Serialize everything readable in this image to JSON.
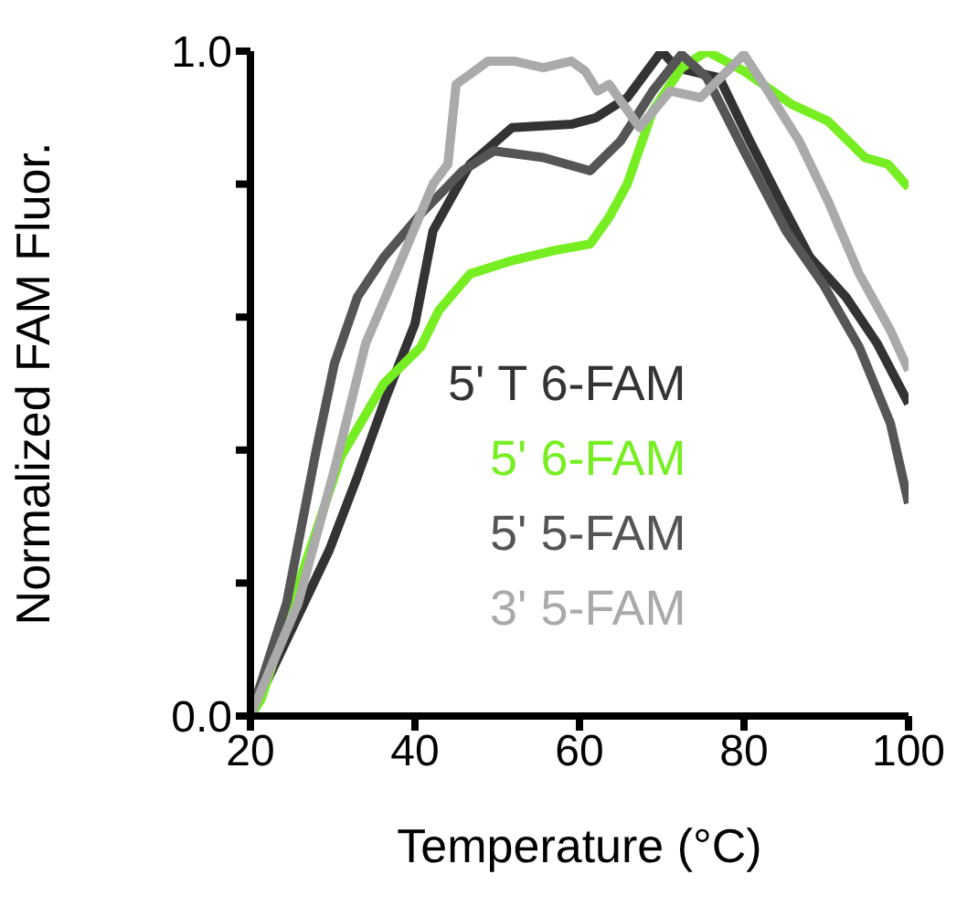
{
  "chart_data": {
    "type": "line",
    "xlabel": "Temperature (°C)",
    "ylabel": "Normalized FAM Fluor.",
    "xlim": [
      20,
      100
    ],
    "xticks": [
      20,
      40,
      60,
      80,
      100
    ],
    "ylim": [
      0,
      1
    ],
    "yticks": [
      {
        "value": 0,
        "label": "0.0"
      },
      {
        "value": 0.2,
        "label": null
      },
      {
        "value": 0.4,
        "label": null
      },
      {
        "value": 0.6,
        "label": null
      },
      {
        "value": 0.8,
        "label": null
      },
      {
        "value": 1,
        "label": "1.0"
      }
    ],
    "legend": "right",
    "marker": "none",
    "line_style": "solid",
    "series": [
      {
        "name": "5' T 6-FAM",
        "color": "#333333",
        "x": [
          20,
          25,
          29.6,
          33,
          36.5,
          40,
          42.2,
          46.7,
          51.8,
          59,
          62,
          65.8,
          70,
          71.8,
          77,
          80.7,
          84.4,
          88,
          92.4,
          96.2,
          100
        ],
        "values": [
          0,
          0.13,
          0.25,
          0.36,
          0.48,
          0.59,
          0.73,
          0.83,
          0.885,
          0.89,
          0.9,
          0.93,
          1.0,
          0.975,
          0.96,
          0.865,
          0.775,
          0.69,
          0.63,
          0.56,
          0.47
        ]
      },
      {
        "name": "5' 6-FAM",
        "color": "#77ee22",
        "x": [
          20,
          21.3,
          26.7,
          31,
          36.2,
          40.7,
          42.9,
          46.7,
          51.8,
          56.9,
          61.3,
          63.6,
          65.8,
          68.9,
          72.4,
          75.5,
          80,
          85.8,
          90.2,
          94.7,
          97.5,
          100
        ],
        "values": [
          0,
          0.025,
          0.23,
          0.39,
          0.5,
          0.555,
          0.61,
          0.665,
          0.685,
          0.7,
          0.71,
          0.75,
          0.8,
          0.91,
          0.975,
          1.0,
          0.97,
          0.92,
          0.895,
          0.84,
          0.83,
          0.795
        ]
      },
      {
        "name": "5' 5-FAM",
        "color": "#555555",
        "x": [
          20,
          24.4,
          28,
          30.2,
          33,
          36.2,
          40.7,
          45.8,
          49.6,
          55.6,
          61.3,
          65,
          68.9,
          72.4,
          75.5,
          80,
          85.1,
          89.6,
          94,
          97.8,
          100
        ],
        "values": [
          0,
          0.17,
          0.4,
          0.53,
          0.63,
          0.69,
          0.755,
          0.82,
          0.85,
          0.84,
          0.82,
          0.865,
          0.94,
          0.995,
          0.96,
          0.85,
          0.73,
          0.65,
          0.555,
          0.44,
          0.32
        ]
      },
      {
        "name": "3' 5-FAM",
        "color": "#aaaaaa",
        "x": [
          20,
          25.8,
          30.2,
          34,
          37.8,
          42.2,
          44,
          45,
          48.9,
          52,
          55.6,
          59,
          60.7,
          62.2,
          63.6,
          67.3,
          71,
          74.7,
          80,
          82.9,
          86.7,
          90.2,
          94,
          97.8,
          100
        ],
        "values": [
          0,
          0.17,
          0.37,
          0.56,
          0.67,
          0.8,
          0.83,
          0.95,
          0.985,
          0.985,
          0.975,
          0.985,
          0.97,
          0.94,
          0.95,
          0.885,
          0.94,
          0.93,
          0.995,
          0.94,
          0.865,
          0.775,
          0.665,
          0.58,
          0.52
        ]
      }
    ]
  }
}
